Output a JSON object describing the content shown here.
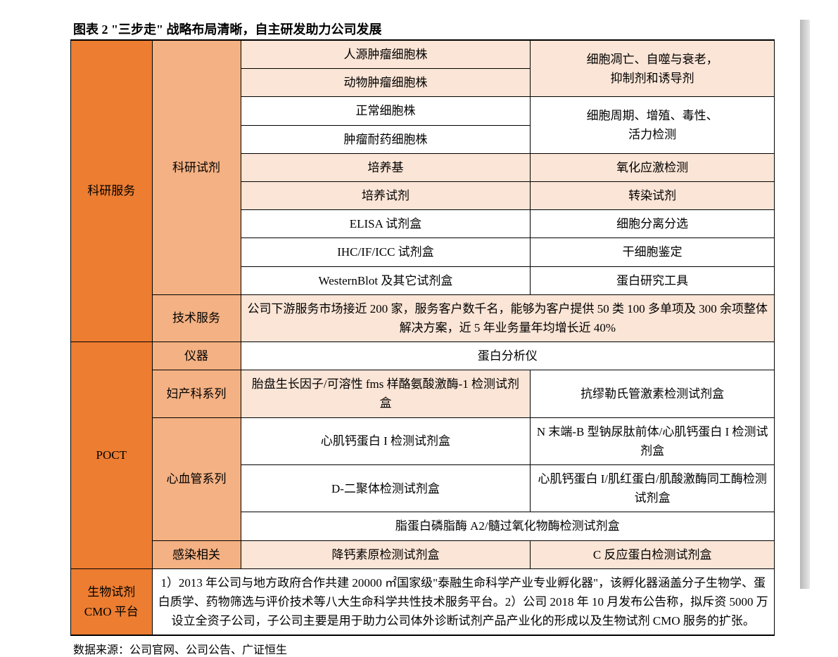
{
  "title": "图表 2 \"三步走\" 战略布局清晰，自主研发助力公司发展",
  "source": "数据来源：公司官网、公司公告、广证恒生",
  "colors": {
    "cat1_bg": "#ed7d31",
    "cat2_bg": "#f4b183",
    "alt_bg": "#fbe5d6",
    "plain_bg": "#ffffff",
    "border": "#000000",
    "text": "#000000"
  },
  "section1": {
    "cat1": "科研服务",
    "cat2a": "科研试剂",
    "cat2b": "技术服务",
    "rows": [
      {
        "left": "人源肿瘤细胞株",
        "right_top": "细胞凋亡、自噬与衰老，",
        "right_bottom": "抑制剂和诱导剂"
      },
      {
        "left": "动物肿瘤细胞株"
      },
      {
        "left": "正常细胞株",
        "right_top": "细胞周期、增殖、毒性、",
        "right_bottom": "活力检测"
      },
      {
        "left": "肿瘤耐药细胞株"
      },
      {
        "left": "培养基",
        "right": "氧化应激检测"
      },
      {
        "left": "培养试剂",
        "right": "转染试剂"
      },
      {
        "left": "ELISA 试剂盒",
        "right": "细胞分离分选"
      },
      {
        "left": "IHC/IF/ICC 试剂盒",
        "right": "干细胞鉴定"
      },
      {
        "left": "WesternBlot 及其它试剂盒",
        "right": "蛋白研究工具"
      }
    ],
    "tech_service_text": "公司下游服务市场接近 200 家，服务客户数千名，能够为客户提供 50 类 100 多单项及 300 余项整体解决方案，近 5 年业务量年均增长近 40%"
  },
  "section2": {
    "cat1": "POCT",
    "cat2a": "仪器",
    "cat2b": "妇产科系列",
    "cat2c": "心血管系列",
    "cat2d": "感染相关",
    "instrument": "蛋白分析仪",
    "gyn_left": "胎盘生长因子/可溶性 fms 样酪氨酸激酶-1 检测试剂盒",
    "gyn_right": "抗缪勒氏管激素检测试剂盒",
    "cardio_r1_left": "心肌钙蛋白 I 检测试剂盒",
    "cardio_r1_right": "N 末端-B 型钠尿肽前体/心肌钙蛋白 I 检测试剂盒",
    "cardio_r2_left": "D-二聚体检测试剂盒",
    "cardio_r2_right": "心肌钙蛋白 I/肌红蛋白/肌酸激酶同工酶检测试剂盒",
    "cardio_r3": "脂蛋白磷脂酶 A2/髓过氧化物酶检测试剂盒",
    "infect_left": "降钙素原检测试剂盒",
    "infect_right": "C 反应蛋白检测试剂盒"
  },
  "section3": {
    "cat1_line1": "生物试剂",
    "cat1_line2": "CMO 平台",
    "text": "1）2013 年公司与地方政府合作共建 20000 ㎡国家级\"泰融生命科学产业专业孵化器\"，该孵化器涵盖分子生物学、蛋白质学、药物筛选与评价技术等八大生命科学共性技术服务平台。2）公司 2018 年 10 月发布公告称，拟斥资 5000 万设立全资子公司，子公司主要是用于助力公司体外诊断试剂产品产业化的形成以及生物试剂 CMO 服务的扩张。"
  }
}
